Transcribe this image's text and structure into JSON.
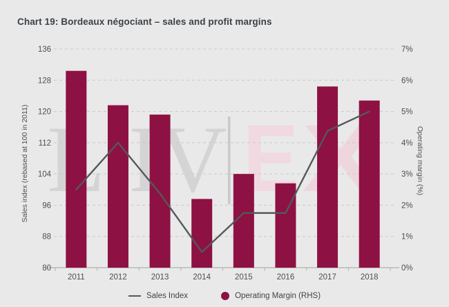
{
  "page": {
    "title": "Chart 19: Bordeaux négociant – sales and profit margins",
    "background": "#e9e9e9"
  },
  "watermark": {
    "left": "LIV",
    "separator": "|",
    "right": "EX"
  },
  "legend": {
    "items": [
      {
        "label": "Sales Index",
        "swatch": "line",
        "color": "#54585b"
      },
      {
        "label": "Operating Margin (RHS)",
        "swatch": "circle",
        "color": "#8e1143"
      }
    ]
  },
  "chart_data": {
    "type": "combo",
    "title": "Chart 19: Bordeaux négociant – sales and profit margins",
    "categories": [
      "2011",
      "2012",
      "2013",
      "2014",
      "2015",
      "2016",
      "2017",
      "2018"
    ],
    "series": [
      {
        "name": "Sales Index",
        "type": "line",
        "axis": "left",
        "color": "#54585b",
        "values": [
          100,
          112,
          99,
          84,
          94,
          94,
          115,
          120
        ]
      },
      {
        "name": "Operating Margin (RHS)",
        "type": "bar",
        "axis": "right",
        "color": "#8e1143",
        "values": [
          6.3,
          5.2,
          4.9,
          2.2,
          3.0,
          2.7,
          5.8,
          5.35
        ]
      }
    ],
    "left_axis": {
      "label": "Sales index (rebased at 100 in 2011)",
      "min": 80,
      "max": 136,
      "ticks": [
        80,
        88,
        96,
        104,
        112,
        120,
        128,
        136
      ]
    },
    "right_axis": {
      "label": "Operating margin (%)",
      "min": 0,
      "max": 7,
      "ticks": [
        "0%",
        "1%",
        "2%",
        "3%",
        "4%",
        "5%",
        "6%",
        "7%"
      ]
    },
    "grid": "dashed-horizontal",
    "legend_position": "bottom"
  }
}
